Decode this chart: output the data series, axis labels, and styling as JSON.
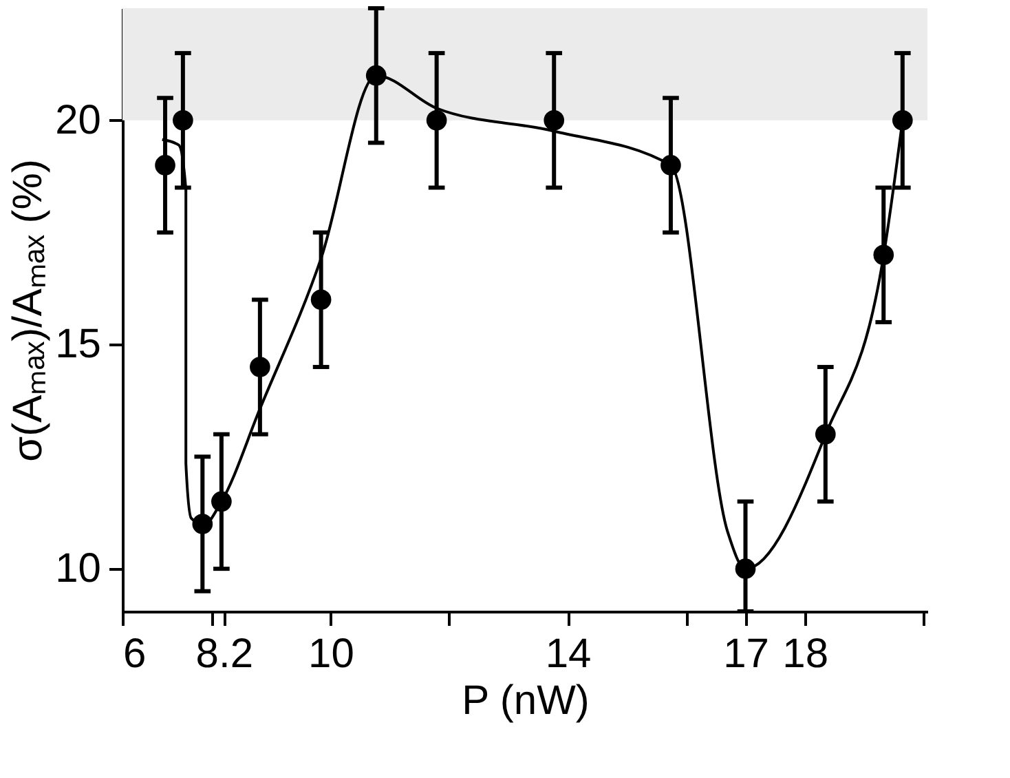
{
  "chart_data": {
    "type": "scatter",
    "xlabel": "P (nW)",
    "ylabel": "σ(Aₘₐₓ)/Aₘₐₓ (%)",
    "xlim": [
      6.49,
      20.07
    ],
    "ylim": [
      9.05,
      22.5
    ],
    "xticks": [
      {
        "value": 6.49,
        "label": "6"
      },
      {
        "value": 8,
        "label": null
      },
      8.2,
      10,
      {
        "value": 12,
        "label": null
      },
      14,
      {
        "value": 16,
        "label": null
      },
      17,
      18,
      {
        "value": 20,
        "label": null
      }
    ],
    "yticks": [
      10,
      15,
      20
    ],
    "marker": "circle",
    "grid": false,
    "bands": [
      {
        "axis": "y",
        "from": 20,
        "to": 22.5,
        "color": "#ebebeb"
      }
    ],
    "series": [
      {
        "color": "#000000",
        "x": [
          7.21,
          7.51,
          7.84,
          8.16,
          8.81,
          9.84,
          10.77,
          11.79,
          13.77,
          15.74,
          17.0,
          18.35,
          19.33,
          19.65
        ],
        "values": [
          19,
          20,
          11,
          11.5,
          14.5,
          16,
          21,
          20,
          20,
          19,
          10,
          13,
          17,
          20
        ],
        "errors": [
          1.5,
          1.5,
          1.5,
          1.5,
          1.5,
          1.5,
          [
            19.5,
            22.5
          ],
          1.5,
          1.5,
          1.5,
          [
            9.05,
            11.5
          ],
          1.5,
          1.5,
          1.5
        ]
      },
      {
        "type": "line",
        "color": "#000000",
        "line_style": "solid",
        "marker": "none",
        "x": [
          7.16,
          7.44,
          7.56,
          7.56,
          7.65,
          7.86,
          8.16,
          8.81,
          9.84,
          10.77,
          11.79,
          13.77,
          15.74,
          16.7,
          17.0,
          18.35,
          19.33,
          19.65
        ],
        "values": [
          19.57,
          19.45,
          18.45,
          12.35,
          11.13,
          10.98,
          11.5,
          13.57,
          16.92,
          21.0,
          20.27,
          19.76,
          19.0,
          10.82,
          10.0,
          12.99,
          16.98,
          20.0
        ]
      }
    ]
  }
}
